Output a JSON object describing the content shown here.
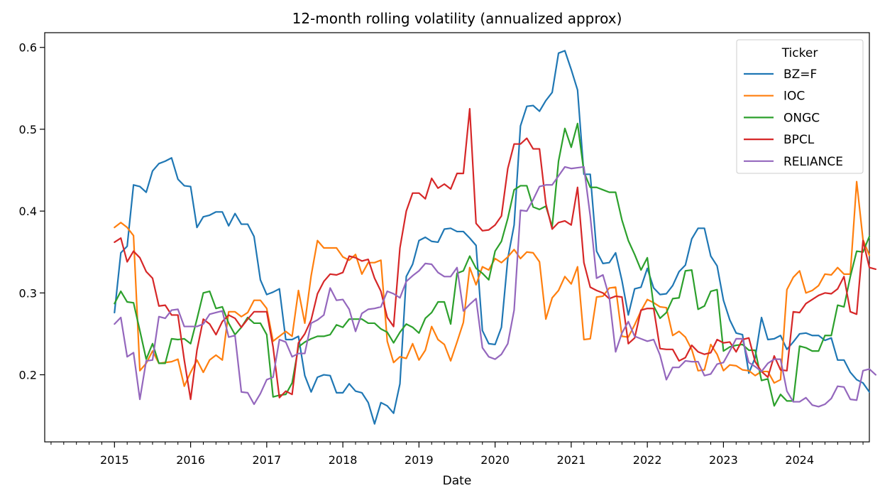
{
  "chart_data": {
    "type": "line",
    "title": "12-month rolling volatility (annualized approx)",
    "xlabel": "Date",
    "ylabel": "",
    "x_start": "2015-01",
    "x_end": "2024-12",
    "xlim": [
      "2014-02",
      "2024-12"
    ],
    "ylim": [
      0.118,
      0.618
    ],
    "xticks": [
      "2015",
      "2016",
      "2017",
      "2018",
      "2019",
      "2020",
      "2021",
      "2022",
      "2023",
      "2024"
    ],
    "yticks": [
      "0.2",
      "0.3",
      "0.4",
      "0.5",
      "0.6"
    ],
    "grid": false,
    "legend": {
      "title": "Ticker",
      "position": "top-right"
    },
    "series": [
      {
        "name": "BZ=F",
        "color": "#1f77b4",
        "values": [
          0.276,
          0.349,
          0.357,
          0.432,
          0.43,
          0.423,
          0.449,
          0.458,
          0.461,
          0.465,
          0.439,
          0.431,
          0.43,
          0.38,
          0.393,
          0.395,
          0.399,
          0.399,
          0.382,
          0.397,
          0.384,
          0.384,
          0.369,
          0.316,
          0.298,
          0.301,
          0.305,
          0.243,
          0.243,
          0.247,
          0.199,
          0.179,
          0.197,
          0.2,
          0.199,
          0.178,
          0.178,
          0.189,
          0.18,
          0.178,
          0.166,
          0.14,
          0.166,
          0.162,
          0.153,
          0.189,
          0.32,
          0.335,
          0.364,
          0.368,
          0.363,
          0.362,
          0.378,
          0.379,
          0.375,
          0.375,
          0.367,
          0.358,
          0.254,
          0.238,
          0.237,
          0.258,
          0.342,
          0.383,
          0.504,
          0.528,
          0.529,
          0.522,
          0.535,
          0.545,
          0.593,
          0.596,
          0.573,
          0.548,
          0.445,
          0.445,
          0.351,
          0.336,
          0.337,
          0.349,
          0.315,
          0.273,
          0.305,
          0.307,
          0.33,
          0.306,
          0.298,
          0.299,
          0.309,
          0.326,
          0.334,
          0.366,
          0.379,
          0.379,
          0.345,
          0.333,
          0.291,
          0.267,
          0.251,
          0.249,
          0.202,
          0.221,
          0.27,
          0.243,
          0.244,
          0.248,
          0.231,
          0.24,
          0.25,
          0.251,
          0.248,
          0.248,
          0.242,
          0.245,
          0.218,
          0.218,
          0.203,
          0.194,
          0.19,
          0.179
        ]
      },
      {
        "name": "IOC",
        "color": "#ff7f0e",
        "values": [
          0.38,
          0.386,
          0.38,
          0.37,
          0.205,
          0.214,
          0.229,
          0.214,
          0.215,
          0.216,
          0.219,
          0.186,
          0.203,
          0.218,
          0.203,
          0.218,
          0.224,
          0.218,
          0.277,
          0.277,
          0.271,
          0.276,
          0.291,
          0.291,
          0.281,
          0.241,
          0.247,
          0.253,
          0.247,
          0.303,
          0.263,
          0.321,
          0.364,
          0.355,
          0.355,
          0.355,
          0.344,
          0.34,
          0.347,
          0.323,
          0.337,
          0.337,
          0.34,
          0.241,
          0.215,
          0.222,
          0.22,
          0.238,
          0.218,
          0.23,
          0.259,
          0.243,
          0.237,
          0.217,
          0.24,
          0.264,
          0.331,
          0.31,
          0.332,
          0.328,
          0.342,
          0.337,
          0.344,
          0.353,
          0.342,
          0.35,
          0.349,
          0.338,
          0.268,
          0.294,
          0.303,
          0.32,
          0.311,
          0.332,
          0.243,
          0.244,
          0.295,
          0.296,
          0.306,
          0.307,
          0.247,
          0.246,
          0.261,
          0.278,
          0.292,
          0.288,
          0.283,
          0.282,
          0.248,
          0.253,
          0.246,
          0.231,
          0.205,
          0.206,
          0.237,
          0.225,
          0.205,
          0.212,
          0.211,
          0.206,
          0.205,
          0.199,
          0.204,
          0.204,
          0.19,
          0.194,
          0.304,
          0.319,
          0.327,
          0.3,
          0.303,
          0.309,
          0.323,
          0.322,
          0.331,
          0.323,
          0.323,
          0.436,
          0.365,
          0.346
        ]
      },
      {
        "name": "ONGC",
        "color": "#2ca02c",
        "values": [
          0.287,
          0.302,
          0.289,
          0.288,
          0.254,
          0.219,
          0.238,
          0.214,
          0.214,
          0.244,
          0.243,
          0.244,
          0.238,
          0.268,
          0.3,
          0.302,
          0.281,
          0.283,
          0.263,
          0.249,
          0.258,
          0.27,
          0.263,
          0.263,
          0.249,
          0.173,
          0.175,
          0.176,
          0.19,
          0.234,
          0.24,
          0.244,
          0.247,
          0.247,
          0.249,
          0.261,
          0.258,
          0.268,
          0.268,
          0.268,
          0.263,
          0.263,
          0.256,
          0.252,
          0.239,
          0.252,
          0.262,
          0.258,
          0.251,
          0.269,
          0.276,
          0.289,
          0.289,
          0.262,
          0.324,
          0.327,
          0.345,
          0.33,
          0.324,
          0.316,
          0.351,
          0.363,
          0.391,
          0.426,
          0.431,
          0.431,
          0.405,
          0.402,
          0.406,
          0.381,
          0.461,
          0.501,
          0.478,
          0.507,
          0.448,
          0.429,
          0.429,
          0.426,
          0.423,
          0.423,
          0.389,
          0.364,
          0.347,
          0.328,
          0.343,
          0.284,
          0.269,
          0.276,
          0.293,
          0.294,
          0.327,
          0.328,
          0.28,
          0.284,
          0.302,
          0.304,
          0.229,
          0.234,
          0.236,
          0.237,
          0.23,
          0.23,
          0.193,
          0.195,
          0.162,
          0.176,
          0.168,
          0.168,
          0.235,
          0.233,
          0.229,
          0.229,
          0.248,
          0.248,
          0.285,
          0.283,
          0.32,
          0.351,
          0.35,
          0.369
        ]
      },
      {
        "name": "BPCL",
        "color": "#d62728",
        "values": [
          0.362,
          0.367,
          0.338,
          0.351,
          0.343,
          0.326,
          0.318,
          0.284,
          0.285,
          0.273,
          0.273,
          0.218,
          0.17,
          0.23,
          0.268,
          0.262,
          0.249,
          0.265,
          0.273,
          0.269,
          0.258,
          0.268,
          0.277,
          0.277,
          0.277,
          0.234,
          0.172,
          0.18,
          0.176,
          0.239,
          0.25,
          0.267,
          0.299,
          0.314,
          0.323,
          0.322,
          0.325,
          0.345,
          0.343,
          0.339,
          0.341,
          0.318,
          0.302,
          0.27,
          0.259,
          0.355,
          0.4,
          0.422,
          0.422,
          0.415,
          0.44,
          0.428,
          0.433,
          0.427,
          0.446,
          0.446,
          0.525,
          0.385,
          0.376,
          0.377,
          0.383,
          0.394,
          0.452,
          0.482,
          0.482,
          0.489,
          0.476,
          0.476,
          0.409,
          0.378,
          0.386,
          0.388,
          0.383,
          0.429,
          0.337,
          0.307,
          0.303,
          0.3,
          0.293,
          0.296,
          0.295,
          0.238,
          0.245,
          0.279,
          0.281,
          0.281,
          0.232,
          0.231,
          0.231,
          0.217,
          0.221,
          0.236,
          0.228,
          0.225,
          0.227,
          0.243,
          0.239,
          0.24,
          0.228,
          0.243,
          0.245,
          0.216,
          0.204,
          0.197,
          0.223,
          0.206,
          0.205,
          0.277,
          0.276,
          0.287,
          0.292,
          0.297,
          0.3,
          0.299,
          0.305,
          0.32,
          0.277,
          0.274,
          0.364,
          0.331,
          0.329
        ]
      },
      {
        "name": "RELIANCE",
        "color": "#9467bd",
        "values": [
          0.262,
          0.27,
          0.222,
          0.227,
          0.17,
          0.217,
          0.218,
          0.271,
          0.269,
          0.279,
          0.28,
          0.259,
          0.259,
          0.259,
          0.262,
          0.274,
          0.276,
          0.278,
          0.246,
          0.248,
          0.179,
          0.178,
          0.164,
          0.177,
          0.194,
          0.197,
          0.243,
          0.24,
          0.222,
          0.226,
          0.226,
          0.263,
          0.267,
          0.273,
          0.306,
          0.291,
          0.292,
          0.28,
          0.253,
          0.275,
          0.28,
          0.281,
          0.283,
          0.302,
          0.299,
          0.294,
          0.314,
          0.321,
          0.327,
          0.336,
          0.335,
          0.325,
          0.32,
          0.32,
          0.331,
          0.278,
          0.286,
          0.293,
          0.233,
          0.222,
          0.219,
          0.225,
          0.238,
          0.279,
          0.401,
          0.4,
          0.414,
          0.43,
          0.432,
          0.432,
          0.443,
          0.454,
          0.452,
          0.453,
          0.454,
          0.394,
          0.318,
          0.322,
          0.295,
          0.228,
          0.251,
          0.265,
          0.247,
          0.244,
          0.241,
          0.243,
          0.224,
          0.194,
          0.209,
          0.209,
          0.217,
          0.216,
          0.216,
          0.199,
          0.201,
          0.213,
          0.215,
          0.229,
          0.244,
          0.244,
          0.215,
          0.21,
          0.204,
          0.214,
          0.219,
          0.219,
          0.18,
          0.167,
          0.167,
          0.172,
          0.163,
          0.161,
          0.164,
          0.171,
          0.186,
          0.185,
          0.17,
          0.169,
          0.205,
          0.207,
          0.2
        ]
      }
    ]
  }
}
